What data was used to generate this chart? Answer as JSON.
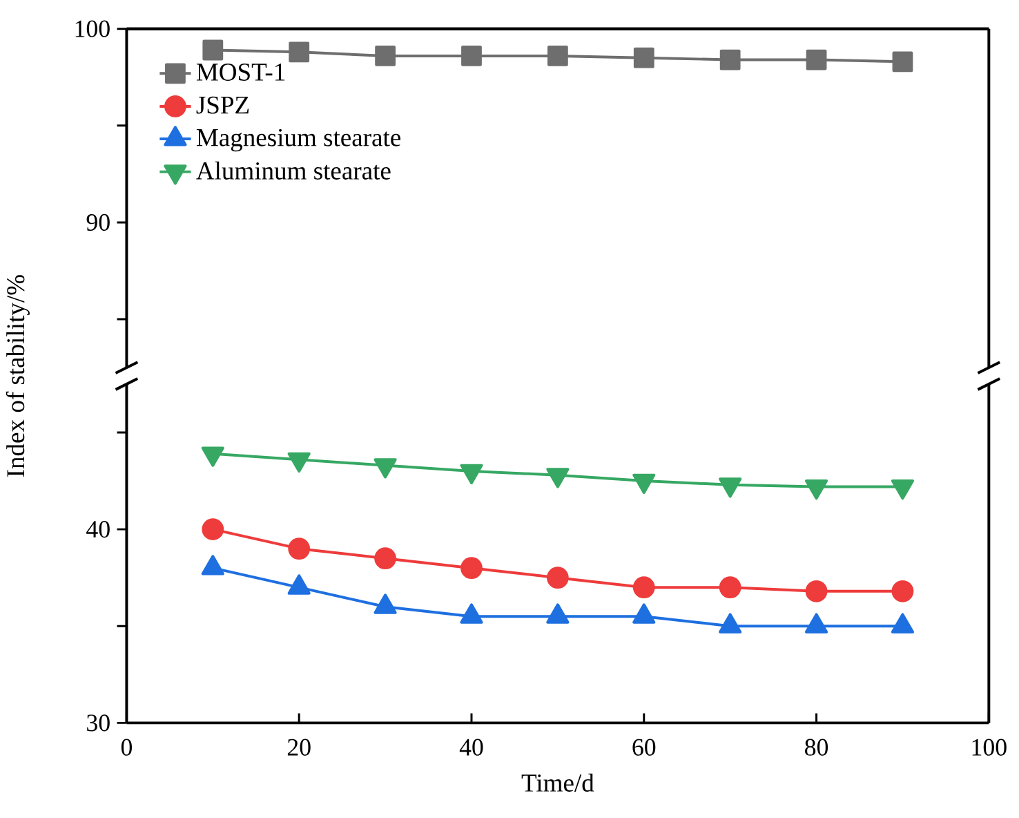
{
  "chart_data": [
    {
      "type": "line",
      "ylabel": null,
      "xlim": [
        0,
        100
      ],
      "ylim": [
        82.5,
        100
      ],
      "yticks": [
        {
          "value": 85,
          "label": null
        },
        90,
        {
          "value": 95,
          "label": null
        },
        100
      ],
      "tick_labels": "y",
      "legend": "top left",
      "line_style": "solid",
      "series": [
        {
          "name": "MOST-1",
          "color": "#6e6e6e",
          "marker": "square",
          "x": [
            10,
            20,
            30,
            40,
            50,
            60,
            70,
            80,
            90
          ],
          "values": [
            98.9,
            98.8,
            98.6,
            98.6,
            98.6,
            98.5,
            98.4,
            98.4,
            98.3
          ]
        }
      ]
    },
    {
      "type": "line",
      "xlabel": "Time/d",
      "ylabel": "Index of stability/%",
      "xlim": [
        0,
        100
      ],
      "ylim": [
        30,
        47.5
      ],
      "xticks": [
        0,
        20,
        40,
        60,
        80,
        100
      ],
      "yticks": [
        30,
        {
          "value": 35,
          "label": null
        },
        40,
        {
          "value": 45,
          "label": null
        }
      ],
      "legend": "top left",
      "line_style": "solid",
      "series": [
        {
          "name": "JSPZ",
          "color": "#ee3b3b",
          "marker": "circle",
          "x": [
            10,
            20,
            30,
            40,
            50,
            60,
            70,
            80,
            90
          ],
          "values": [
            40,
            39,
            38.5,
            38,
            37.5,
            37,
            37,
            36.8,
            36.8
          ]
        },
        {
          "name": "Magnesium stearate",
          "color": "#1e6fe0",
          "marker": "triangle",
          "x": [
            10,
            20,
            30,
            40,
            50,
            60,
            70,
            80,
            90
          ],
          "values": [
            38,
            37,
            36,
            35.5,
            35.5,
            35.5,
            35,
            35,
            35
          ]
        },
        {
          "name": "Aluminum stearate",
          "color": "#36a863",
          "marker": "triangle-down",
          "x": [
            10,
            20,
            30,
            40,
            50,
            60,
            70,
            80,
            90
          ],
          "values": [
            43.9,
            43.6,
            43.3,
            43,
            42.8,
            42.5,
            42.3,
            42.2,
            42.2
          ]
        }
      ]
    }
  ]
}
